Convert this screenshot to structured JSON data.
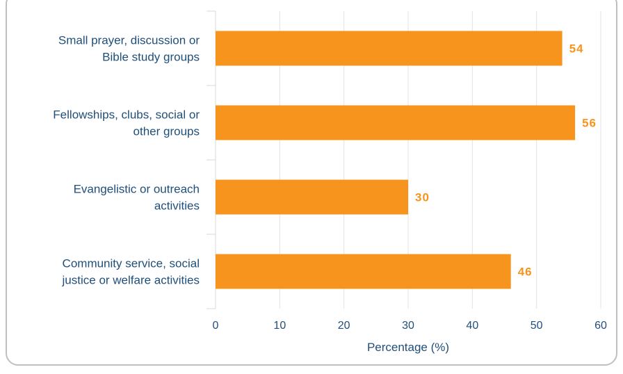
{
  "chart_data": {
    "type": "bar",
    "orientation": "horizontal",
    "categories": [
      [
        "Small prayer, discussion or",
        "Bible study groups"
      ],
      [
        "Fellowships, clubs, social or",
        "other groups"
      ],
      [
        "Evangelistic or outreach",
        "activities"
      ],
      [
        "Community service, social",
        "justice or welfare activities"
      ]
    ],
    "values": [
      54,
      56,
      30,
      46
    ],
    "data_labels": [
      "54",
      "56",
      "30",
      "46"
    ],
    "xlabel": "Percentage (%)",
    "xlim": [
      0,
      60
    ],
    "xticks": [
      "0",
      "10",
      "20",
      "30",
      "40",
      "50",
      "60"
    ],
    "grid": "vertical",
    "bar_color": "#f7941d",
    "label_color": "#f7941d",
    "text_color": "#1f4e79"
  }
}
